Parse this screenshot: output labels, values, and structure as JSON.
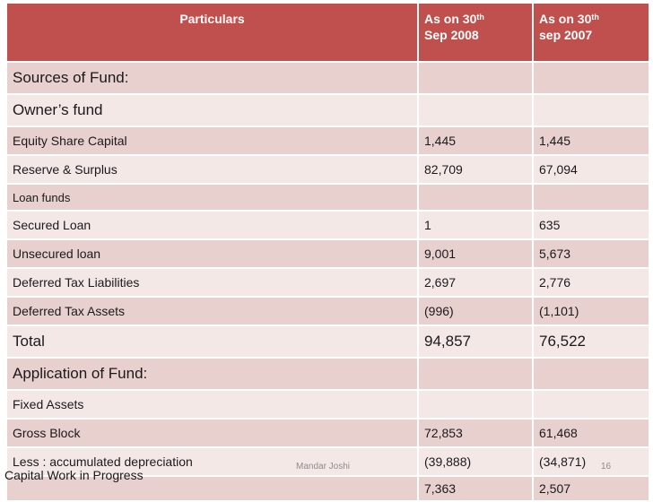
{
  "header": {
    "particulars": "Particulars",
    "col1_line1": "As on 30",
    "col1_sup": "th",
    "col1_line2": "Sep 2008",
    "col2_line1": "As on 30",
    "col2_sup": "th",
    "col2_line2": "sep 2007"
  },
  "rows": [
    {
      "label": "Sources of Fund:",
      "v2008": "",
      "v2007": ""
    },
    {
      "label": "Owner’s fund",
      "v2008": "",
      "v2007": ""
    },
    {
      "label": "Equity Share Capital",
      "v2008": "1,445",
      "v2007": "1,445"
    },
    {
      "label": "Reserve &  Surplus",
      "v2008": "82,709",
      "v2007": "67,094"
    },
    {
      "label": "Loan funds",
      "v2008": "",
      "v2007": ""
    },
    {
      "label": "Secured Loan",
      "v2008": "1",
      "v2007": "635"
    },
    {
      "label": "Unsecured loan",
      "v2008": "9,001",
      "v2007": "5,673"
    },
    {
      "label": "Deferred Tax Liabilities",
      "v2008": "2,697",
      "v2007": "2,776"
    },
    {
      "label": "Deferred Tax Assets",
      "v2008": "(996)",
      "v2007": "(1,101)"
    },
    {
      "label": "Total",
      "v2008": "94,857",
      "v2007": "76,522"
    },
    {
      "label": "Application of Fund:",
      "v2008": "",
      "v2007": ""
    },
    {
      "label": "Fixed Assets",
      "v2008": "",
      "v2007": ""
    },
    {
      "label": "Gross Block",
      "v2008": "72,853",
      "v2007": "61,468"
    },
    {
      "label": "Less : accumulated depreciation",
      "v2008": "(39,888)",
      "v2007": "(34,871)"
    },
    {
      "label": "Capital Work in Progress",
      "v2008": "7,363",
      "v2007": "2,507"
    }
  ],
  "footer": {
    "author": "Mandar Joshi",
    "page": "16"
  },
  "colors": {
    "header_bg": "#c0504d",
    "row_dark": "#e8d0cf",
    "row_light": "#f4e8e7"
  }
}
